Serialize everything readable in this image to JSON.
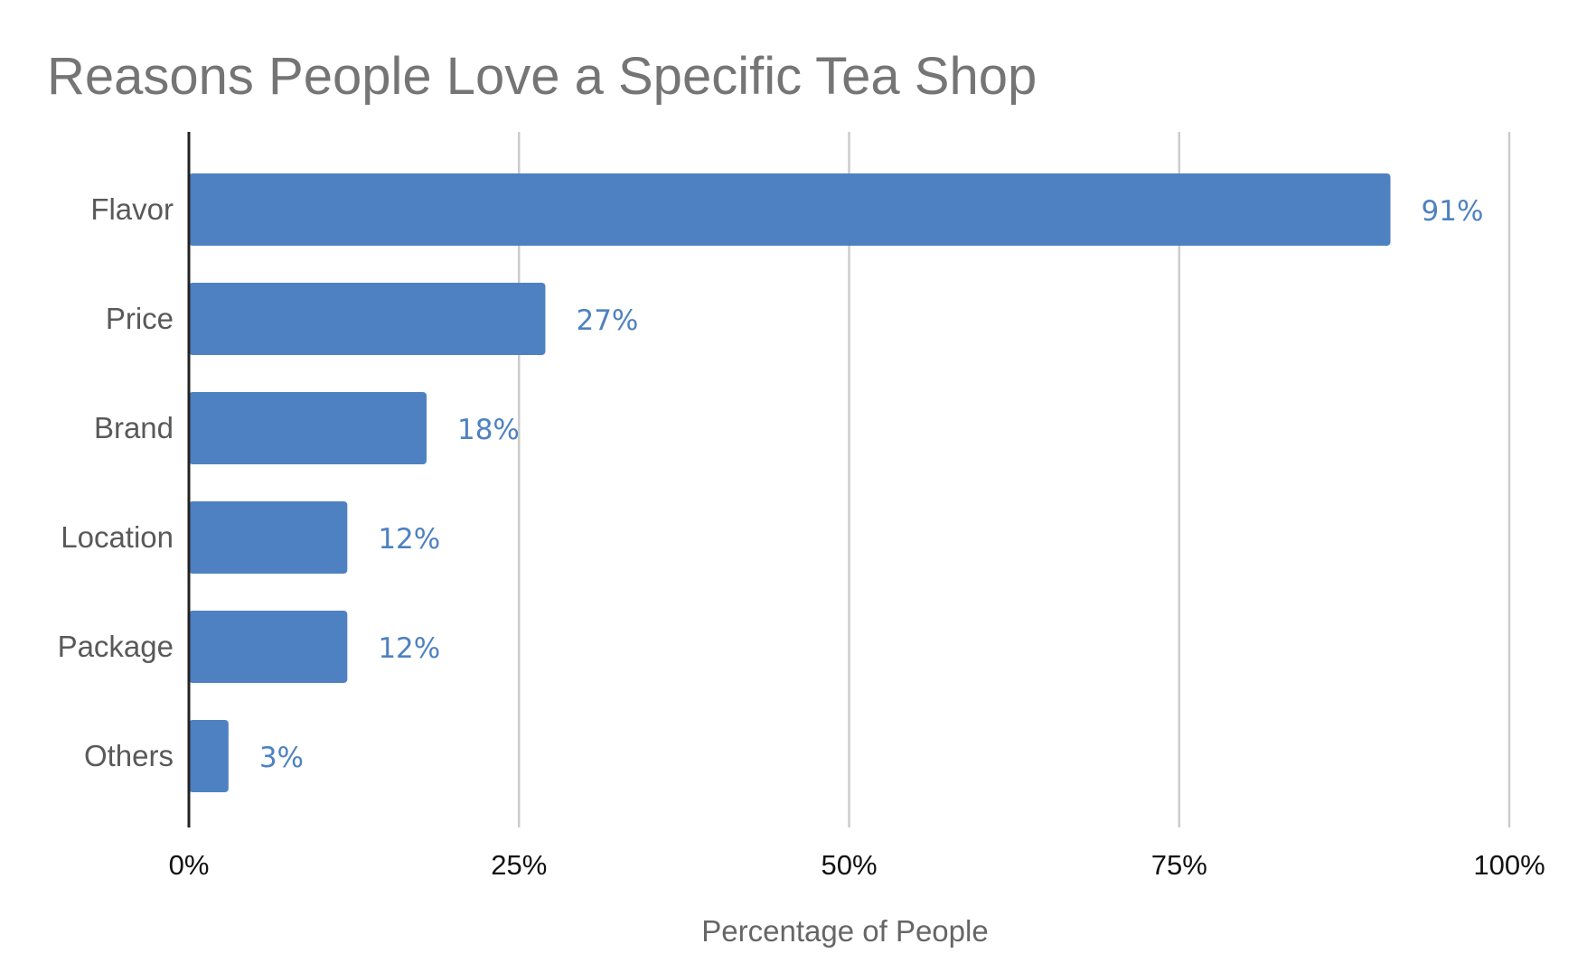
{
  "chart_data": {
    "type": "bar",
    "orientation": "horizontal",
    "title": "Reasons People Love a Specific Tea Shop",
    "xlabel": "Percentage of People",
    "ylabel": "",
    "categories": [
      "Flavor",
      "Price",
      "Brand",
      "Location",
      "Package",
      "Others"
    ],
    "values": [
      91,
      27,
      18,
      12,
      12,
      3
    ],
    "data_labels": [
      "91%",
      "27%",
      "18%",
      "12%",
      "12%",
      "3%"
    ],
    "xlim": [
      0,
      100
    ],
    "xticks": [
      0,
      25,
      50,
      75,
      100
    ],
    "xtick_labels": [
      "0%",
      "25%",
      "50%",
      "75%",
      "100%"
    ],
    "grid": "vertical",
    "legend": "none",
    "colors": {
      "bar": "#4e81c1",
      "data_label": "#4e81c1",
      "grid": "#cccccc",
      "axis": "#222222",
      "title": "#757575"
    }
  }
}
